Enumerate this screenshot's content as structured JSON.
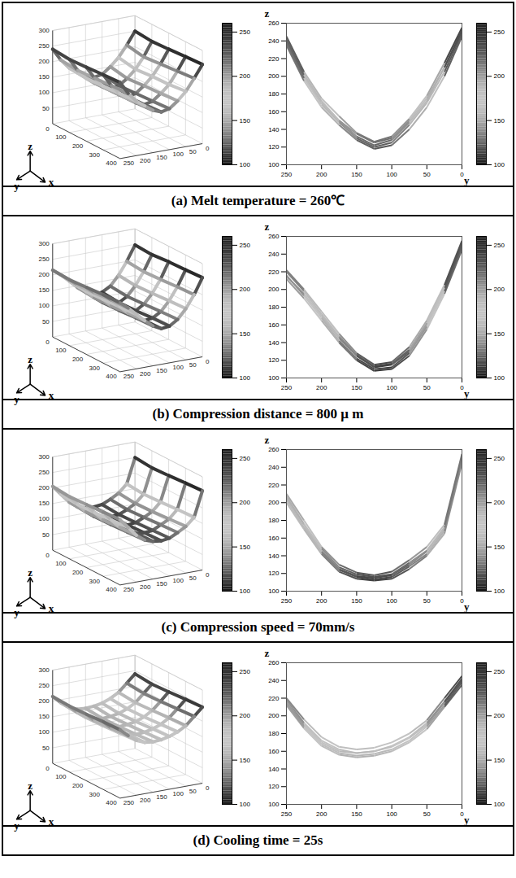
{
  "chart_data": [
    {
      "type": "surface",
      "title": "(a) Melt temperature = 260℃",
      "axis_labels": {
        "x": "x",
        "y": "y",
        "z": "z"
      },
      "xlim": [
        0,
        400
      ],
      "xticks": [
        0,
        100,
        200,
        300,
        400
      ],
      "ylim": [
        0,
        250
      ],
      "yticks": [
        0,
        50,
        100,
        150,
        200,
        250
      ],
      "zlim": [
        0,
        300
      ],
      "zticks": [
        50,
        100,
        150,
        200,
        250,
        300
      ],
      "x": [
        0,
        100,
        200,
        300,
        400
      ],
      "y": [
        0,
        25,
        50,
        75,
        100,
        125,
        150,
        175,
        200,
        225,
        250
      ],
      "z": [
        [
          250,
          210,
          175,
          150,
          130,
          125,
          135,
          150,
          170,
          200,
          240
        ],
        [
          245,
          200,
          165,
          140,
          122,
          118,
          128,
          145,
          165,
          195,
          235
        ],
        [
          248,
          205,
          170,
          145,
          125,
          120,
          130,
          148,
          168,
          198,
          238
        ],
        [
          252,
          210,
          172,
          148,
          128,
          122,
          132,
          150,
          172,
          202,
          242
        ],
        [
          255,
          215,
          178,
          152,
          132,
          126,
          136,
          155,
          175,
          205,
          245
        ]
      ],
      "projection": {
        "ylim": [
          0,
          250
        ],
        "yticks": [
          0,
          50,
          100,
          150,
          200,
          250
        ],
        "zlim": [
          100,
          260
        ],
        "zticks": [
          100,
          120,
          140,
          160,
          180,
          200,
          220,
          240,
          260
        ]
      },
      "colorbar": {
        "range": [
          100,
          260
        ],
        "ticks": [
          100,
          150,
          200,
          250
        ]
      }
    },
    {
      "type": "surface",
      "title": "(b) Compression distance = 800 μ m",
      "axis_labels": {
        "x": "x",
        "y": "y",
        "z": "z"
      },
      "xlim": [
        0,
        400
      ],
      "xticks": [
        0,
        100,
        200,
        300,
        400
      ],
      "ylim": [
        0,
        250
      ],
      "yticks": [
        0,
        50,
        100,
        150,
        200,
        250
      ],
      "zlim": [
        0,
        300
      ],
      "zticks": [
        50,
        100,
        150,
        200,
        250,
        300
      ],
      "x": [
        0,
        100,
        200,
        300,
        400
      ],
      "y": [
        0,
        25,
        50,
        75,
        100,
        125,
        150,
        175,
        200,
        225,
        250
      ],
      "z": [
        [
          248,
          200,
          160,
          130,
          115,
          112,
          125,
          145,
          170,
          195,
          215
        ],
        [
          245,
          195,
          155,
          125,
          110,
          108,
          120,
          140,
          165,
          190,
          212
        ],
        [
          250,
          198,
          158,
          128,
          112,
          110,
          122,
          142,
          168,
          193,
          216
        ],
        [
          252,
          202,
          162,
          132,
          116,
          113,
          126,
          147,
          172,
          198,
          220
        ],
        [
          255,
          205,
          165,
          135,
          118,
          115,
          128,
          150,
          175,
          200,
          222
        ]
      ],
      "projection": {
        "ylim": [
          0,
          250
        ],
        "yticks": [
          0,
          50,
          100,
          150,
          200,
          250
        ],
        "zlim": [
          100,
          260
        ],
        "zticks": [
          100,
          120,
          140,
          160,
          180,
          200,
          220,
          240,
          260
        ]
      },
      "colorbar": {
        "range": [
          100,
          260
        ],
        "ticks": [
          100,
          150,
          200,
          250
        ]
      }
    },
    {
      "type": "surface",
      "title": "(c) Compression speed = 70mm/s",
      "axis_labels": {
        "x": "x",
        "y": "y",
        "z": "z"
      },
      "xlim": [
        0,
        400
      ],
      "xticks": [
        0,
        100,
        200,
        300,
        400
      ],
      "ylim": [
        0,
        250
      ],
      "yticks": [
        0,
        50,
        100,
        150,
        200,
        250
      ],
      "zlim": [
        0,
        300
      ],
      "zticks": [
        50,
        100,
        150,
        200,
        250,
        300
      ],
      "x": [
        0,
        100,
        200,
        300,
        400
      ],
      "y": [
        0,
        25,
        50,
        75,
        100,
        125,
        150,
        175,
        200,
        225,
        250
      ],
      "z": [
        [
          250,
          170,
          145,
          130,
          118,
          115,
          117,
          125,
          145,
          175,
          205
        ],
        [
          245,
          165,
          140,
          125,
          114,
          112,
          114,
          122,
          142,
          170,
          200
        ],
        [
          248,
          168,
          142,
          128,
          116,
          113,
          116,
          124,
          144,
          172,
          203
        ],
        [
          252,
          172,
          146,
          132,
          119,
          116,
          119,
          127,
          148,
          176,
          207
        ],
        [
          255,
          175,
          150,
          135,
          122,
          118,
          121,
          130,
          150,
          180,
          210
        ]
      ],
      "projection": {
        "ylim": [
          0,
          250
        ],
        "yticks": [
          0,
          50,
          100,
          150,
          200,
          250
        ],
        "zlim": [
          100,
          260
        ],
        "zticks": [
          100,
          120,
          140,
          160,
          180,
          200,
          220,
          240,
          260
        ]
      },
      "colorbar": {
        "range": [
          100,
          260
        ],
        "ticks": [
          100,
          150,
          200,
          250
        ]
      }
    },
    {
      "type": "surface",
      "title": "(d) Cooling time = 25s",
      "axis_labels": {
        "x": "x",
        "y": "y",
        "z": "z"
      },
      "xlim": [
        0,
        400
      ],
      "xticks": [
        0,
        100,
        200,
        300,
        400
      ],
      "ylim": [
        0,
        250
      ],
      "yticks": [
        0,
        50,
        100,
        150,
        200,
        250
      ],
      "zlim": [
        0,
        300
      ],
      "zticks": [
        50,
        100,
        150,
        200,
        250,
        300
      ],
      "x": [
        0,
        100,
        200,
        300,
        400
      ],
      "y": [
        0,
        25,
        50,
        75,
        100,
        125,
        150,
        175,
        200,
        225,
        250
      ],
      "z": [
        [
          240,
          215,
          190,
          175,
          165,
          160,
          158,
          160,
          170,
          190,
          215
        ],
        [
          235,
          210,
          185,
          170,
          160,
          155,
          153,
          156,
          166,
          186,
          212
        ],
        [
          238,
          212,
          188,
          172,
          162,
          157,
          155,
          158,
          168,
          188,
          214
        ],
        [
          242,
          216,
          192,
          176,
          166,
          160,
          158,
          162,
          172,
          192,
          218
        ],
        [
          245,
          220,
          195,
          180,
          170,
          164,
          162,
          165,
          176,
          196,
          220
        ]
      ],
      "projection": {
        "ylim": [
          0,
          250
        ],
        "yticks": [
          0,
          50,
          100,
          150,
          200,
          250
        ],
        "zlim": [
          100,
          260
        ],
        "zticks": [
          100,
          120,
          140,
          160,
          180,
          200,
          220,
          240,
          260
        ]
      },
      "colorbar": {
        "range": [
          100,
          260
        ],
        "ticks": [
          100,
          150,
          200,
          250
        ]
      }
    }
  ]
}
